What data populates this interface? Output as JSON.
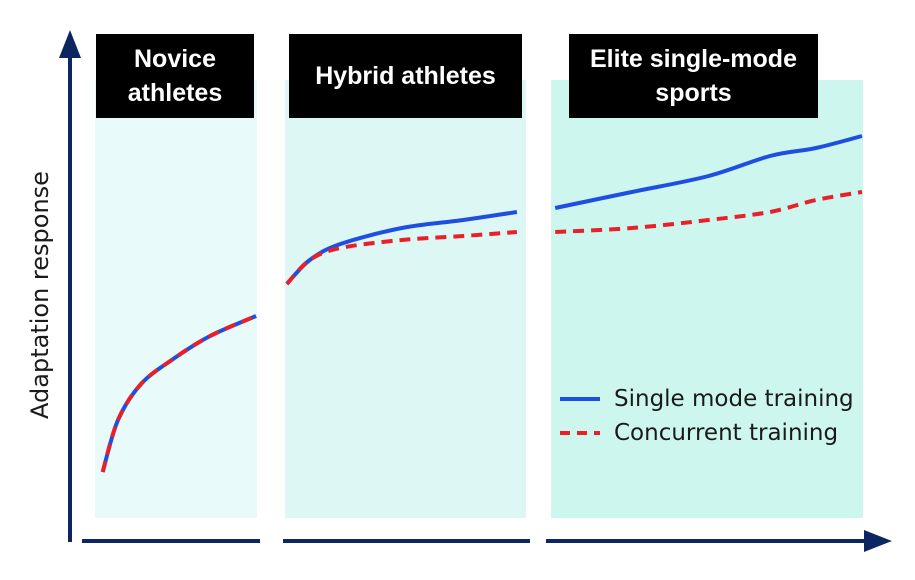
{
  "chart_data": {
    "type": "line",
    "ylabel": "Adaptation response",
    "xlabel": "",
    "regions": [
      {
        "name": "Novice athletes",
        "lines": [
          "Novice",
          "athletes"
        ],
        "color": "#e9fafa"
      },
      {
        "name": "Hybrid athletes",
        "lines": [
          "Hybrid athletes"
        ],
        "color": "#ddf8f4"
      },
      {
        "name": "Elite single-mode sports",
        "lines": [
          "Elite single-mode",
          "sports"
        ],
        "color": "#cdf6ef"
      }
    ],
    "xlim": [
      0,
      100
    ],
    "ylim": [
      0,
      100
    ],
    "series": [
      {
        "name": "Single mode training",
        "color": "#1f4fe0",
        "style": "solid",
        "segments": [
          [
            [
              1,
              2
            ],
            [
              3,
              15
            ],
            [
              6,
              24
            ],
            [
              10,
              30
            ],
            [
              15,
              36
            ],
            [
              21,
              41
            ]
          ],
          [
            [
              25,
              49
            ],
            [
              28,
              55
            ],
            [
              32,
              59
            ],
            [
              40,
              63
            ],
            [
              48,
              65
            ],
            [
              55,
              67
            ]
          ],
          [
            [
              60,
              68
            ],
            [
              70,
              72
            ],
            [
              80,
              76
            ],
            [
              88,
              81
            ],
            [
              94,
              83
            ],
            [
              100,
              86
            ]
          ]
        ]
      },
      {
        "name": "Concurrent training",
        "color": "#e8202a",
        "style": "dashed",
        "segments": [
          [
            [
              1,
              2
            ],
            [
              3,
              15
            ],
            [
              6,
              24
            ],
            [
              10,
              30
            ],
            [
              15,
              36
            ],
            [
              21,
              41
            ]
          ],
          [
            [
              25,
              49
            ],
            [
              28,
              55
            ],
            [
              32,
              58
            ],
            [
              40,
              60
            ],
            [
              48,
              61
            ],
            [
              55,
              62
            ]
          ],
          [
            [
              60,
              62
            ],
            [
              70,
              63
            ],
            [
              80,
              65
            ],
            [
              88,
              67
            ],
            [
              94,
              70
            ],
            [
              100,
              72
            ]
          ]
        ]
      }
    ],
    "legend": {
      "position": "bottom-right",
      "entries": [
        "Single mode training",
        "Concurrent training"
      ]
    }
  }
}
